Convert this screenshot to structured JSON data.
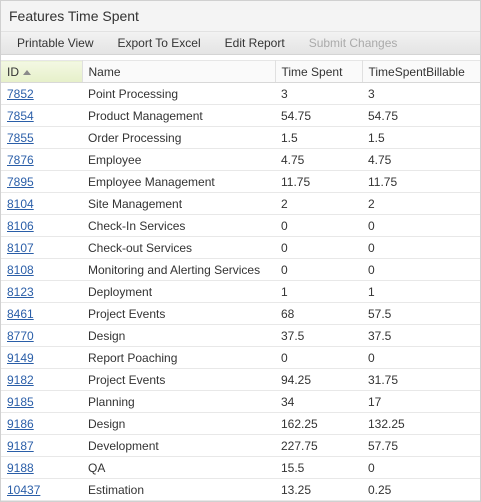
{
  "header": {
    "title": "Features Time Spent"
  },
  "toolbar": {
    "buttons": [
      "Printable View",
      "Export To Excel",
      "Edit Report",
      "Submit Changes"
    ]
  },
  "table": {
    "columns": [
      "ID",
      "Name",
      "Time Spent",
      "TimeSpentBillable"
    ],
    "rows": [
      [
        7852,
        "Point Processing",
        3,
        3
      ],
      [
        7854,
        "Product Management",
        54.75,
        54.75
      ],
      [
        7855,
        "Order Processing",
        1.5,
        1.5
      ],
      [
        7876,
        "Employee",
        4.75,
        4.75
      ],
      [
        7895,
        "Employee Management",
        11.75,
        11.75
      ],
      [
        8104,
        "Site Management",
        2,
        2
      ],
      [
        8106,
        "Check-In Services",
        0,
        0
      ],
      [
        8107,
        "Check-out Services",
        0,
        0
      ],
      [
        8108,
        "Monitoring and Alerting Services",
        0,
        0
      ],
      [
        8123,
        "Deployment",
        1,
        1
      ],
      [
        8461,
        "Project Events",
        68,
        57.5
      ],
      [
        8770,
        "Design",
        37.5,
        37.5
      ],
      [
        9149,
        "Report Poaching",
        0,
        0
      ],
      [
        9182,
        "Project Events",
        94.25,
        31.75
      ],
      [
        9185,
        "Planning",
        34,
        17
      ],
      [
        9186,
        "Design",
        162.25,
        132.25
      ],
      [
        9187,
        "Development",
        227.75,
        57.75
      ],
      [
        9188,
        "QA",
        15.5,
        0
      ],
      [
        10437,
        "Estimation",
        13.25,
        0.25
      ]
    ]
  }
}
